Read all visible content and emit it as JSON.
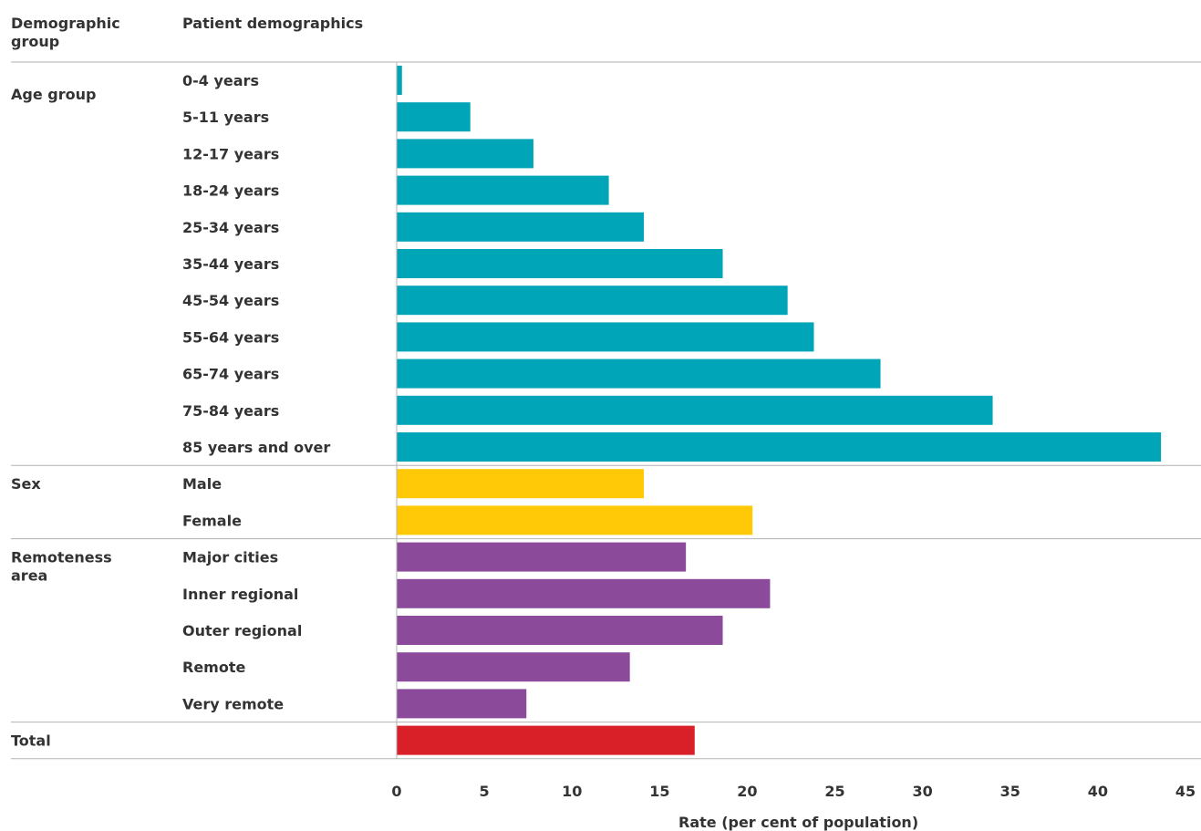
{
  "headers": {
    "group": "Demographic group",
    "demographic": "Patient demographics"
  },
  "chart_data": {
    "type": "bar",
    "orientation": "horizontal",
    "xlabel": "Rate (per cent of population)",
    "xlim": [
      0,
      45
    ],
    "xticks": [
      0,
      5,
      10,
      15,
      20,
      25,
      30,
      35,
      40,
      45
    ],
    "groups": [
      {
        "name": "Age group",
        "color": "#00a5b8",
        "categories": [
          "0-4 years",
          "5-11 years",
          "12-17 years",
          "18-24 years",
          "25-34 years",
          "35-44 years",
          "45-54 years",
          "55-64 years",
          "65-74 years",
          "75-84 years",
          "85 years and over"
        ],
        "values": [
          0.3,
          4.2,
          7.8,
          12.1,
          14.1,
          18.6,
          22.3,
          23.8,
          27.6,
          34.0,
          43.6
        ]
      },
      {
        "name": "Sex",
        "color": "#ffc907",
        "categories": [
          "Male",
          "Female"
        ],
        "values": [
          14.1,
          20.3
        ]
      },
      {
        "name": "Remoteness area",
        "color": "#8c4a9b",
        "categories": [
          "Major cities",
          "Inner regional",
          "Outer regional",
          "Remote",
          "Very remote"
        ],
        "values": [
          16.5,
          21.3,
          18.6,
          13.3,
          7.4
        ]
      },
      {
        "name": "Total",
        "color": "#d92028",
        "categories": [
          ""
        ],
        "values": [
          17.0
        ]
      }
    ]
  }
}
